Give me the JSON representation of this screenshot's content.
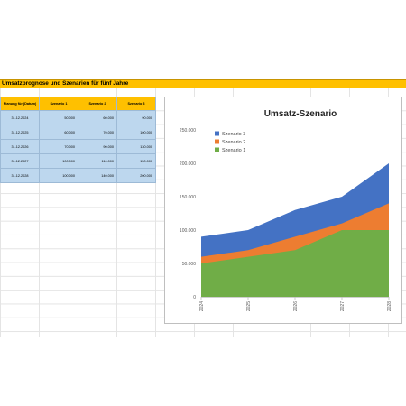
{
  "sheet": {
    "title": "Umsatzprognose und Szenarien für fünf Jahre",
    "headers": [
      "Planung für (Datum)",
      "Szenario 1",
      "Szenario 2",
      "Szenario 3"
    ],
    "rows": [
      [
        "31.12.2024",
        "50.000",
        "60.000",
        "90.000"
      ],
      [
        "31.12.2025",
        "60.000",
        "70.000",
        "100.000"
      ],
      [
        "31.12.2026",
        "70.000",
        "90.000",
        "130.000"
      ],
      [
        "31.12.2027",
        "100.000",
        "110.000",
        "150.000"
      ],
      [
        "31.12.2028",
        "100.000",
        "140.000",
        "200.000"
      ]
    ]
  },
  "chart_data": {
    "type": "area",
    "title": "Umsatz-Szenario",
    "x": [
      "2024",
      "2025",
      "2026",
      "2027",
      "2028"
    ],
    "series": [
      {
        "name": "Szenario 1",
        "values": [
          50000,
          60000,
          70000,
          100000,
          100000
        ],
        "color": "#70ad47"
      },
      {
        "name": "Szenario 2",
        "values": [
          60000,
          70000,
          90000,
          110000,
          140000
        ],
        "color": "#ed7d31"
      },
      {
        "name": "Szenario 3",
        "values": [
          90000,
          100000,
          130000,
          150000,
          200000
        ],
        "color": "#4472c4"
      }
    ],
    "ylim": [
      0,
      250000
    ],
    "yticks": [
      "0",
      "50.000",
      "100.000",
      "150.000",
      "200.000",
      "250.000"
    ],
    "legend_position": "top-left",
    "legend_order": [
      "Szenario 3",
      "Szenario 2",
      "Szenario 1"
    ],
    "grid": false
  }
}
